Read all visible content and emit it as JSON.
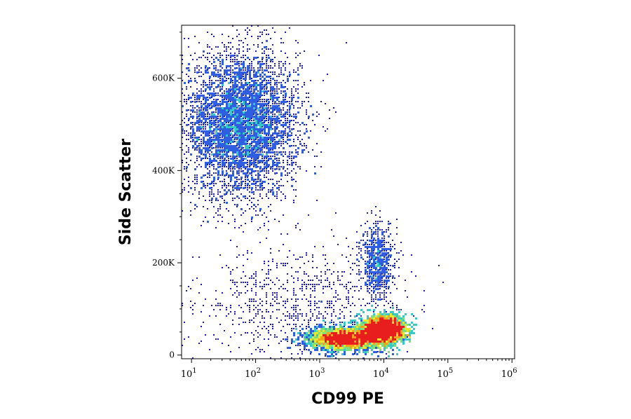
{
  "chart_data": {
    "type": "scatter",
    "subtype": "flow-cytometry-density-dot-plot",
    "title": "",
    "xlabel": "CD99 PE",
    "ylabel": "Side Scatter",
    "x_scale": "log",
    "xlim": [
      7,
      1100000
    ],
    "ylim": [
      -8000,
      715000
    ],
    "x_ticks": [
      {
        "value": 10,
        "base": "10",
        "exp": "1"
      },
      {
        "value": 100,
        "base": "10",
        "exp": "2"
      },
      {
        "value": 1000,
        "base": "10",
        "exp": "3"
      },
      {
        "value": 10000,
        "base": "10",
        "exp": "4"
      },
      {
        "value": 100000,
        "base": "10",
        "exp": "5"
      },
      {
        "value": 1000000,
        "base": "10",
        "exp": "6"
      }
    ],
    "y_ticks": [
      {
        "value": 0,
        "label": "0"
      },
      {
        "value": 200000,
        "label": "200K"
      },
      {
        "value": 400000,
        "label": "400K"
      },
      {
        "value": 600000,
        "label": "600K"
      }
    ],
    "grid": false,
    "legend": "none",
    "density_colors": [
      "#1a1ab8",
      "#2f5fe0",
      "#37c8c8",
      "#7fe07a",
      "#e8e830",
      "#f7a01e",
      "#e81e1e"
    ],
    "populations": [
      {
        "name": "granulocytes",
        "x_center": 60,
        "x_log_sd": 0.45,
        "y_center": 500000,
        "y_sd": 80000,
        "count": 5200,
        "peak_density": "medium"
      },
      {
        "name": "lymphocytes",
        "x_center": 2500,
        "x_log_sd": 0.28,
        "y_center": 35000,
        "y_sd": 12000,
        "count": 2600,
        "peak_density": "high"
      },
      {
        "name": "CD99-bright cells",
        "x_center": 10000,
        "x_log_sd": 0.16,
        "y_center": 55000,
        "y_sd": 14000,
        "count": 2600,
        "peak_density": "highest"
      },
      {
        "name": "monocytes",
        "x_center": 8000,
        "x_log_sd": 0.13,
        "y_center": 200000,
        "y_sd": 40000,
        "count": 700,
        "peak_density": "medium"
      },
      {
        "name": "debris / scattered events",
        "x_center": 500,
        "x_log_sd": 0.8,
        "y_center": 110000,
        "y_sd": 60000,
        "count": 900,
        "peak_density": "low"
      }
    ]
  }
}
